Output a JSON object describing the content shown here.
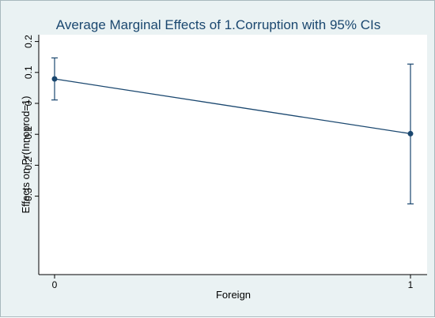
{
  "chart_data": {
    "type": "line",
    "title": "Average Marginal Effects of 1.Corruption with 95% CIs",
    "xlabel": "Foreign",
    "ylabel": "Effects on Pr(Innoprod=1)",
    "x": [
      0,
      1
    ],
    "x_tick_labels": [
      "0",
      "1"
    ],
    "y_ticks": [
      0.2,
      0.1,
      0,
      -0.1,
      -0.2,
      -0.3
    ],
    "y_tick_labels": [
      "0.2",
      "0.1",
      "0",
      "-0.1",
      "-0.2",
      "-0.3"
    ],
    "ylim": [
      -0.35,
      0.21
    ],
    "series": [
      {
        "values": [
          0.079,
          -0.098
        ],
        "ci_lower": [
          0.011,
          -0.325
        ],
        "ci_upper": [
          0.147,
          0.127
        ]
      }
    ],
    "grid": false,
    "legend": "none",
    "colors": {
      "background": "#eaf2f3",
      "plot_area": "#ffffff",
      "line": "#1a476f",
      "title": "#1a476f"
    }
  }
}
